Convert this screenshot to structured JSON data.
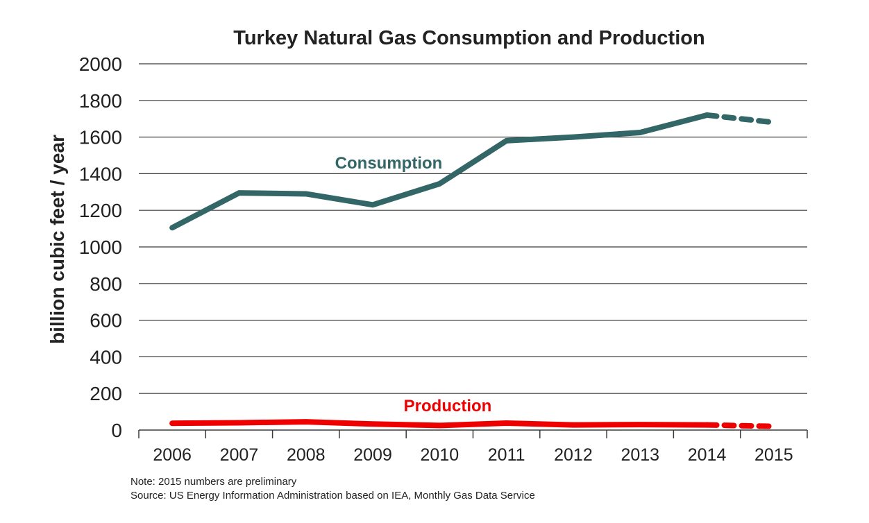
{
  "chart_data": {
    "type": "line",
    "title": "Turkey Natural Gas Consumption and Production",
    "ylabel": "billion cubic feet / year",
    "xlabel": "",
    "ylim": [
      0,
      2000
    ],
    "yticks": [
      0,
      200,
      400,
      600,
      800,
      1000,
      1200,
      1400,
      1600,
      1800,
      2000
    ],
    "grid": true,
    "categories": [
      "2006",
      "2007",
      "2008",
      "2009",
      "2010",
      "2011",
      "2012",
      "2013",
      "2014",
      "2015"
    ],
    "preliminary_from_index": 8,
    "series": [
      {
        "name": "Consumption",
        "color": "#336666",
        "values": [
          1105,
          1295,
          1290,
          1230,
          1345,
          1580,
          1600,
          1625,
          1720,
          1680
        ]
      },
      {
        "name": "Production",
        "color": "#ee0000",
        "values": [
          37,
          40,
          45,
          33,
          25,
          38,
          28,
          30,
          28,
          20
        ]
      }
    ],
    "notes": [
      "Note: 2015 numbers are preliminary",
      "Source: US Energy Information Administration based on IEA, Monthly Gas Data Service"
    ]
  }
}
